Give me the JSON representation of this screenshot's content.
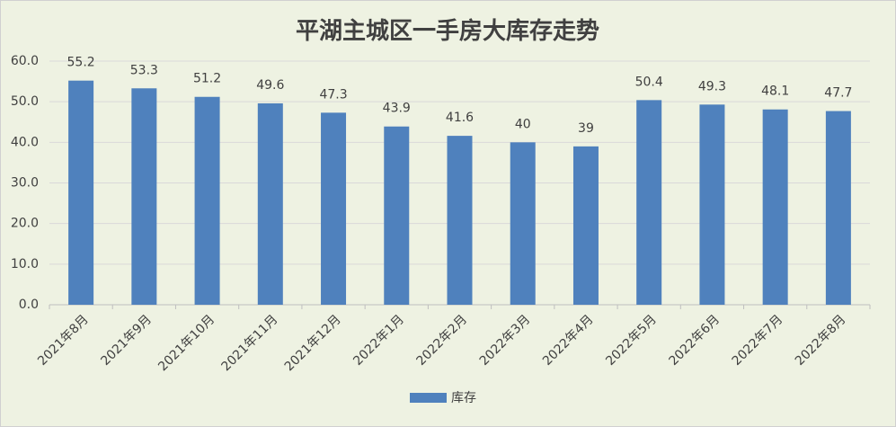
{
  "chart_data": {
    "type": "bar",
    "title": "平湖主城区一手房大库存走势",
    "categories": [
      "2021年8月",
      "2021年9月",
      "2021年10月",
      "2021年11月",
      "2021年12月",
      "2022年1月",
      "2022年2月",
      "2022年3月",
      "2022年4月",
      "2022年5月",
      "2022年6月",
      "2022年7月",
      "2022年8月"
    ],
    "series": [
      {
        "name": "库存",
        "color": "#4f81bd",
        "values": [
          55.2,
          53.3,
          51.2,
          49.6,
          47.3,
          43.9,
          41.6,
          40,
          39,
          50.4,
          49.3,
          48.1,
          47.7
        ]
      }
    ],
    "ylim": [
      0,
      60
    ],
    "yticks": [
      {
        "value": 0,
        "label": "0.0"
      },
      {
        "value": 10,
        "label": "10.0"
      },
      {
        "value": 20,
        "label": "20.0"
      },
      {
        "value": 30,
        "label": "30.0"
      },
      {
        "value": 40,
        "label": "40.0"
      },
      {
        "value": 50,
        "label": "50.0"
      },
      {
        "value": 60,
        "label": "60.0"
      }
    ],
    "grid": true,
    "legend": "bottom"
  }
}
